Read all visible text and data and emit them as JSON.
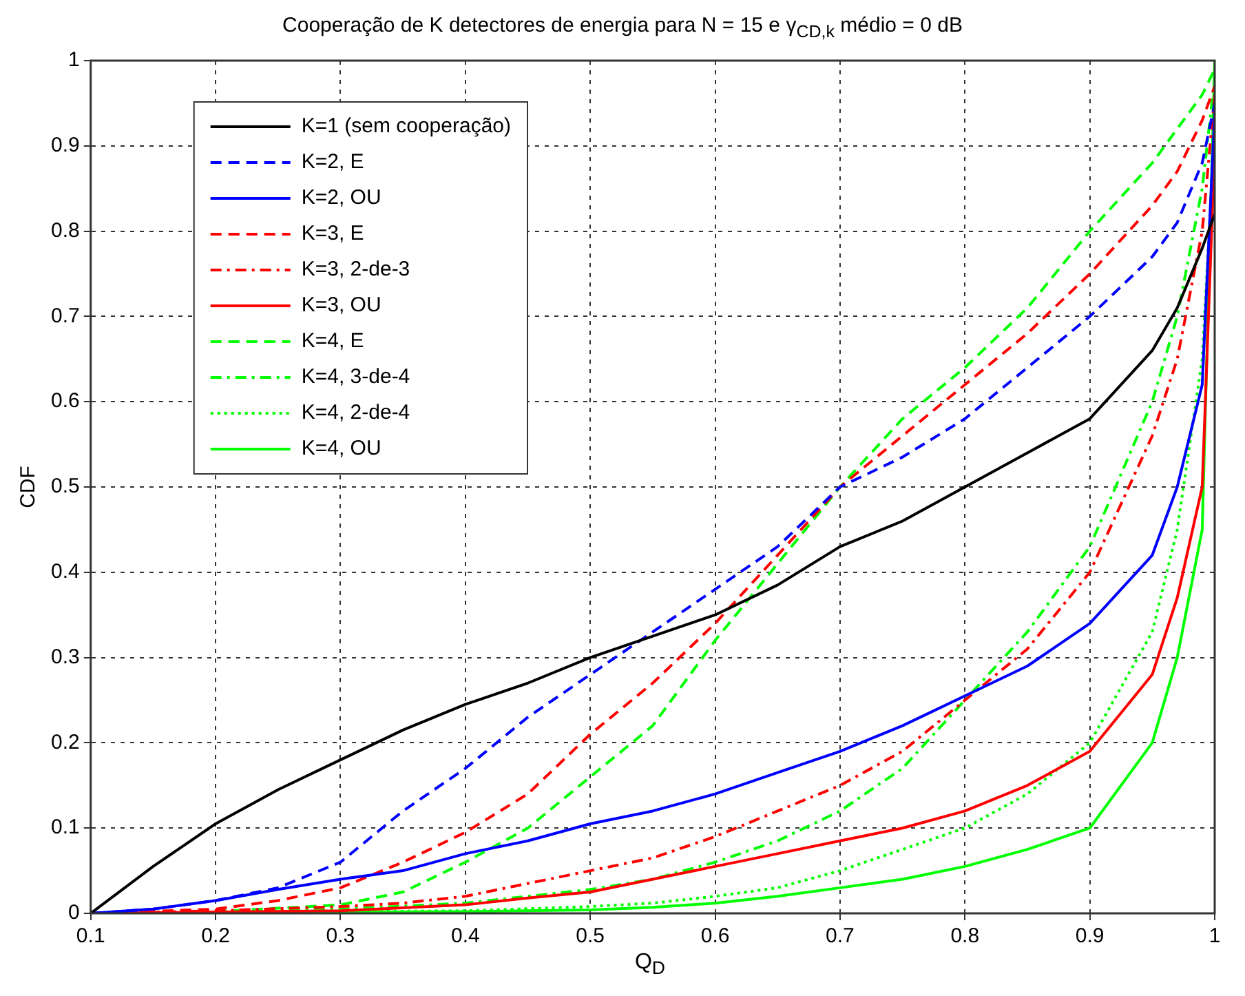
{
  "chart_data": {
    "type": "line",
    "title": "Cooperação de K detectores de energia para N = 15 e γ$_{CD,k}$ médio = 0 dB",
    "xlabel": "Q$_{D}$",
    "ylabel": "CDF",
    "xlim": [
      0.1,
      1
    ],
    "xticks": [
      0.1,
      0.2,
      0.3,
      0.4,
      0.5,
      0.6,
      0.7,
      0.8,
      0.9,
      1
    ],
    "ylim": [
      0,
      1
    ],
    "yticks": [
      0,
      0.1,
      0.2,
      0.3,
      0.4,
      0.5,
      0.6,
      0.7,
      0.8,
      0.9,
      1
    ],
    "grid": true,
    "legend": "top left",
    "marker": "none",
    "series": [
      {
        "name": "K=1 (sem cooperação)",
        "color": "#000000",
        "line_style": "solid",
        "x": [
          0.1,
          0.15,
          0.2,
          0.25,
          0.3,
          0.35,
          0.4,
          0.45,
          0.5,
          0.55,
          0.6,
          0.65,
          0.7,
          0.75,
          0.8,
          0.85,
          0.9,
          0.95,
          0.97,
          0.99,
          1
        ],
        "values": [
          0,
          0.055,
          0.105,
          0.145,
          0.18,
          0.215,
          0.245,
          0.27,
          0.3,
          0.325,
          0.35,
          0.385,
          0.43,
          0.46,
          0.5,
          0.54,
          0.58,
          0.66,
          0.71,
          0.78,
          0.82
        ]
      },
      {
        "name": "K=2, E",
        "color": "#0000ff",
        "line_style": "dashed",
        "x": [
          0.1,
          0.15,
          0.2,
          0.25,
          0.3,
          0.35,
          0.4,
          0.45,
          0.5,
          0.55,
          0.6,
          0.65,
          0.7,
          0.75,
          0.8,
          0.85,
          0.9,
          0.95,
          0.97,
          0.99,
          1
        ],
        "values": [
          0,
          0.005,
          0.015,
          0.03,
          0.06,
          0.12,
          0.17,
          0.23,
          0.28,
          0.33,
          0.38,
          0.43,
          0.5,
          0.535,
          0.58,
          0.64,
          0.7,
          0.77,
          0.81,
          0.88,
          0.95
        ]
      },
      {
        "name": "K=2, OU",
        "color": "#0000ff",
        "line_style": "solid",
        "x": [
          0.1,
          0.15,
          0.2,
          0.25,
          0.3,
          0.35,
          0.4,
          0.45,
          0.5,
          0.55,
          0.6,
          0.65,
          0.7,
          0.75,
          0.8,
          0.85,
          0.9,
          0.95,
          0.97,
          0.99,
          1
        ],
        "values": [
          0,
          0.005,
          0.015,
          0.028,
          0.04,
          0.05,
          0.07,
          0.085,
          0.105,
          0.12,
          0.14,
          0.165,
          0.19,
          0.22,
          0.255,
          0.29,
          0.34,
          0.42,
          0.5,
          0.62,
          0.94
        ]
      },
      {
        "name": "K=3, E",
        "color": "#ff0000",
        "line_style": "dashed",
        "x": [
          0.1,
          0.2,
          0.25,
          0.3,
          0.35,
          0.4,
          0.45,
          0.5,
          0.55,
          0.6,
          0.65,
          0.7,
          0.75,
          0.8,
          0.85,
          0.9,
          0.95,
          0.97,
          0.99,
          1
        ],
        "values": [
          0,
          0.005,
          0.015,
          0.03,
          0.06,
          0.095,
          0.14,
          0.21,
          0.27,
          0.34,
          0.42,
          0.5,
          0.56,
          0.62,
          0.68,
          0.75,
          0.83,
          0.87,
          0.93,
          0.97
        ]
      },
      {
        "name": "K=3, 2-de-3",
        "color": "#ff0000",
        "line_style": "dashdot",
        "x": [
          0.1,
          0.2,
          0.3,
          0.35,
          0.4,
          0.45,
          0.5,
          0.55,
          0.6,
          0.65,
          0.7,
          0.75,
          0.8,
          0.85,
          0.9,
          0.95,
          0.97,
          0.99,
          1
        ],
        "values": [
          0,
          0.003,
          0.008,
          0.012,
          0.02,
          0.035,
          0.05,
          0.065,
          0.09,
          0.12,
          0.15,
          0.19,
          0.25,
          0.31,
          0.4,
          0.56,
          0.65,
          0.8,
          0.96
        ]
      },
      {
        "name": "K=3, OU",
        "color": "#ff0000",
        "line_style": "solid",
        "x": [
          0.1,
          0.3,
          0.4,
          0.45,
          0.5,
          0.55,
          0.6,
          0.65,
          0.7,
          0.75,
          0.8,
          0.85,
          0.9,
          0.95,
          0.97,
          0.99,
          1
        ],
        "values": [
          0,
          0.003,
          0.01,
          0.018,
          0.025,
          0.04,
          0.055,
          0.07,
          0.085,
          0.1,
          0.12,
          0.15,
          0.19,
          0.28,
          0.37,
          0.5,
          0.9
        ]
      },
      {
        "name": "K=4, E",
        "color": "#00ff00",
        "line_style": "dashed",
        "x": [
          0.1,
          0.2,
          0.3,
          0.35,
          0.4,
          0.45,
          0.5,
          0.55,
          0.6,
          0.65,
          0.7,
          0.75,
          0.8,
          0.85,
          0.9,
          0.95,
          0.97,
          0.99,
          1
        ],
        "values": [
          0,
          0.002,
          0.01,
          0.025,
          0.06,
          0.1,
          0.16,
          0.22,
          0.32,
          0.41,
          0.5,
          0.58,
          0.64,
          0.71,
          0.8,
          0.88,
          0.92,
          0.96,
          0.99
        ]
      },
      {
        "name": "K=4, 3-de-4",
        "color": "#00ff00",
        "line_style": "dashdot",
        "x": [
          0.1,
          0.3,
          0.4,
          0.45,
          0.5,
          0.55,
          0.6,
          0.65,
          0.7,
          0.75,
          0.8,
          0.85,
          0.9,
          0.95,
          0.97,
          0.99,
          1
        ],
        "values": [
          0,
          0.005,
          0.012,
          0.02,
          0.028,
          0.04,
          0.06,
          0.085,
          0.12,
          0.17,
          0.25,
          0.33,
          0.43,
          0.6,
          0.7,
          0.85,
          0.98
        ]
      },
      {
        "name": "K=4, 2-de-4",
        "color": "#00ff00",
        "line_style": "dotted",
        "x": [
          0.1,
          0.4,
          0.5,
          0.55,
          0.6,
          0.65,
          0.7,
          0.75,
          0.8,
          0.85,
          0.9,
          0.95,
          0.97,
          0.99,
          1
        ],
        "values": [
          0,
          0.003,
          0.008,
          0.012,
          0.02,
          0.03,
          0.05,
          0.075,
          0.1,
          0.14,
          0.2,
          0.33,
          0.45,
          0.65,
          0.92
        ]
      },
      {
        "name": "K=4, OU",
        "color": "#00ff00",
        "line_style": "solid",
        "x": [
          0.1,
          0.4,
          0.5,
          0.55,
          0.6,
          0.65,
          0.7,
          0.75,
          0.8,
          0.85,
          0.9,
          0.95,
          0.97,
          0.99,
          1
        ],
        "values": [
          0,
          0.002,
          0.004,
          0.007,
          0.012,
          0.02,
          0.03,
          0.04,
          0.055,
          0.075,
          0.1,
          0.2,
          0.3,
          0.45,
          1
        ]
      }
    ]
  }
}
